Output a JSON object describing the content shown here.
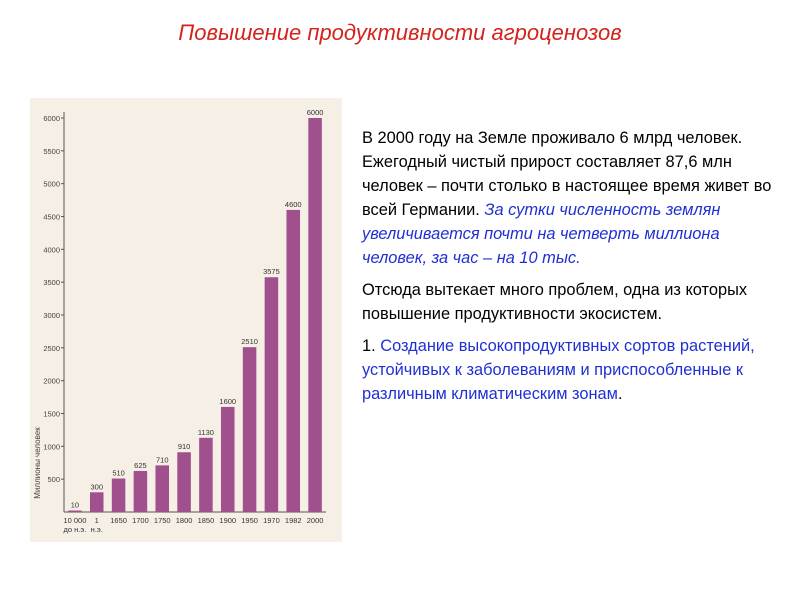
{
  "title": "Повышение продуктивности агроценозов",
  "chart_data": {
    "type": "bar",
    "ylabel": "Миллионы человек",
    "ylim": [
      0,
      6000
    ],
    "yticks": [
      500,
      1000,
      1500,
      2000,
      2500,
      3000,
      3500,
      4000,
      4500,
      5000,
      5500,
      6000
    ],
    "categories": [
      "10 000 до н.э.",
      "1 н.э.",
      "1650",
      "1700",
      "1750",
      "1800",
      "1850",
      "1900",
      "1950",
      "1970",
      "1982",
      "2000"
    ],
    "category_lines": [
      [
        "10 000",
        "до н.э."
      ],
      [
        "1",
        "н.э."
      ],
      [
        "1650"
      ],
      [
        "1700"
      ],
      [
        "1750"
      ],
      [
        "1800"
      ],
      [
        "1850"
      ],
      [
        "1900"
      ],
      [
        "1950"
      ],
      [
        "1970"
      ],
      [
        "1982"
      ],
      [
        "2000"
      ]
    ],
    "values": [
      10,
      300,
      510,
      625,
      710,
      910,
      1130,
      1600,
      2510,
      3575,
      4600,
      6000
    ],
    "value_labels": [
      "10",
      "300",
      "510",
      "625",
      "710",
      "910",
      "1130",
      "1600",
      "2510",
      "3575",
      "4600",
      "6000"
    ],
    "bar_color": "#a0508c",
    "grid": false
  },
  "text": {
    "p1_plain": "В 2000 году на Земле проживало 6 млрд человек. Ежегодный чистый прирост составляет 87,6 млн человек – почти столько в настоящее время живет во всей Германии.",
    "p1_italic": "За сутки численность землян увеличивается почти на четверть миллиона человек, за час – на 10 тыс.",
    "p2": "Отсюда вытекает много проблем, одна из которых повышение продуктивности экосистем.",
    "p3_number": "1.",
    "p3_blue": "Создание высокопродуктивных сортов растений, устойчивых к заболеваниям и приспособленные к различным климатическим зонам",
    "p3_end": "."
  },
  "colors": {
    "title": "#d4221c",
    "highlight": "#1f2fd4",
    "bar": "#a0508c"
  }
}
